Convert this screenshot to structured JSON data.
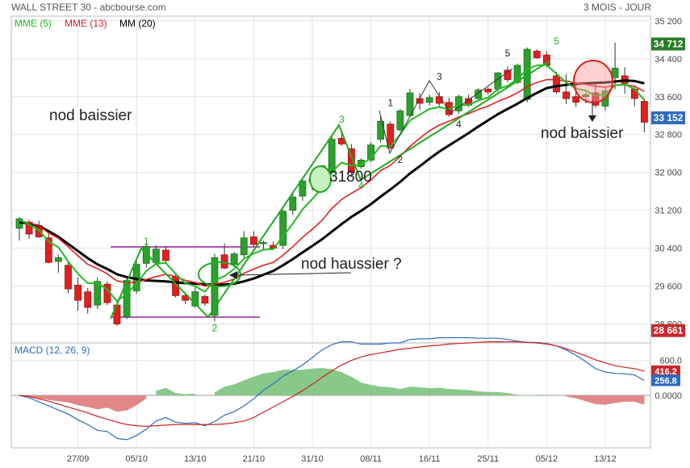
{
  "header": {
    "title": "WALL STREET 30 - abcbourse.com",
    "period": "3 MOIS - JOUR"
  },
  "chart_data": [
    {
      "type": "candlestick",
      "legend": [
        {
          "name": "MME (5)",
          "color": "#22bb22"
        },
        {
          "name": "MME (13)",
          "color": "#e02020"
        },
        {
          "name": "MM (20)",
          "color": "#000000"
        }
      ],
      "ylim": [
        28400,
        35300
      ],
      "y_ticks": [
        "35 200",
        "34 400",
        "33 600",
        "32 800",
        "32 000",
        "31 200",
        "30 400",
        "29 600",
        "28 800"
      ],
      "price_tags": [
        {
          "label": "34 712",
          "value": 34712,
          "bg": "#2a7d2a"
        },
        {
          "label": "33 152",
          "value": 33152,
          "bg": "#2e6bbf"
        },
        {
          "label": "28 661",
          "value": 28661,
          "bg": "#c8282c"
        }
      ],
      "x_ticks": [
        {
          "label": "27/09",
          "i": 6
        },
        {
          "label": "05/10",
          "i": 12
        },
        {
          "label": "13/10",
          "i": 18
        },
        {
          "label": "21/10",
          "i": 24
        },
        {
          "label": "31/10",
          "i": 30
        },
        {
          "label": "08/11",
          "i": 36
        },
        {
          "label": "16/11",
          "i": 42
        },
        {
          "label": "25/11",
          "i": 48
        },
        {
          "label": "05/12",
          "i": 54
        },
        {
          "label": "13/12",
          "i": 60
        }
      ],
      "candles": [
        {
          "o": 30820,
          "h": 31060,
          "l": 30560,
          "c": 31020
        },
        {
          "o": 30950,
          "h": 31000,
          "l": 30600,
          "c": 30700
        },
        {
          "o": 30880,
          "h": 30980,
          "l": 30620,
          "c": 30640
        },
        {
          "o": 30620,
          "h": 30700,
          "l": 30080,
          "c": 30100
        },
        {
          "o": 30120,
          "h": 30260,
          "l": 29880,
          "c": 30200
        },
        {
          "o": 30040,
          "h": 30100,
          "l": 29450,
          "c": 29540
        },
        {
          "o": 29620,
          "h": 29780,
          "l": 29080,
          "c": 29300
        },
        {
          "o": 29480,
          "h": 29560,
          "l": 29020,
          "c": 29150
        },
        {
          "o": 29200,
          "h": 29780,
          "l": 29120,
          "c": 29700
        },
        {
          "o": 29640,
          "h": 29700,
          "l": 29200,
          "c": 29250
        },
        {
          "o": 29200,
          "h": 29260,
          "l": 28760,
          "c": 28800
        },
        {
          "o": 28950,
          "h": 29800,
          "l": 28900,
          "c": 29720
        },
        {
          "o": 29500,
          "h": 30140,
          "l": 29440,
          "c": 30060
        },
        {
          "o": 30080,
          "h": 30480,
          "l": 30000,
          "c": 30440
        },
        {
          "o": 30100,
          "h": 30460,
          "l": 30060,
          "c": 30380
        },
        {
          "o": 30360,
          "h": 30420,
          "l": 30060,
          "c": 30140
        },
        {
          "o": 29800,
          "h": 29860,
          "l": 29360,
          "c": 29400
        },
        {
          "o": 29400,
          "h": 29460,
          "l": 29220,
          "c": 29300
        },
        {
          "o": 29180,
          "h": 29580,
          "l": 29140,
          "c": 29480
        },
        {
          "o": 29380,
          "h": 29420,
          "l": 29180,
          "c": 29240
        },
        {
          "o": 28980,
          "h": 30280,
          "l": 28860,
          "c": 30200
        },
        {
          "o": 30260,
          "h": 30500,
          "l": 29960,
          "c": 29980
        },
        {
          "o": 30060,
          "h": 30320,
          "l": 30000,
          "c": 30280
        },
        {
          "o": 30260,
          "h": 30760,
          "l": 30200,
          "c": 30620
        },
        {
          "o": 30640,
          "h": 30760,
          "l": 30440,
          "c": 30480
        },
        {
          "o": 30500,
          "h": 30560,
          "l": 30380,
          "c": 30520
        },
        {
          "o": 30460,
          "h": 30540,
          "l": 30360,
          "c": 30400
        },
        {
          "o": 30460,
          "h": 31220,
          "l": 30380,
          "c": 31180
        },
        {
          "o": 31200,
          "h": 31560,
          "l": 31100,
          "c": 31480
        },
        {
          "o": 31500,
          "h": 31860,
          "l": 31400,
          "c": 31820
        },
        {
          "o": 31800,
          "h": 31920,
          "l": 31620,
          "c": 31860
        },
        {
          "o": 31940,
          "h": 32160,
          "l": 31880,
          "c": 32140
        },
        {
          "o": 32000,
          "h": 32800,
          "l": 31960,
          "c": 32700
        },
        {
          "o": 32720,
          "h": 32860,
          "l": 32560,
          "c": 32600
        },
        {
          "o": 32500,
          "h": 32600,
          "l": 31900,
          "c": 32000
        },
        {
          "o": 32120,
          "h": 32300,
          "l": 32080,
          "c": 32260
        },
        {
          "o": 32260,
          "h": 32640,
          "l": 32220,
          "c": 32580
        },
        {
          "o": 32700,
          "h": 33180,
          "l": 32620,
          "c": 33080
        },
        {
          "o": 33020,
          "h": 33080,
          "l": 32480,
          "c": 32520
        },
        {
          "o": 32900,
          "h": 33340,
          "l": 32860,
          "c": 33300
        },
        {
          "o": 33200,
          "h": 33760,
          "l": 33160,
          "c": 33680
        },
        {
          "o": 33560,
          "h": 33680,
          "l": 33320,
          "c": 33460
        },
        {
          "o": 33480,
          "h": 33640,
          "l": 33420,
          "c": 33580
        },
        {
          "o": 33600,
          "h": 33700,
          "l": 33400,
          "c": 33460
        },
        {
          "o": 33480,
          "h": 33580,
          "l": 33180,
          "c": 33220
        },
        {
          "o": 33300,
          "h": 33640,
          "l": 33240,
          "c": 33600
        },
        {
          "o": 33560,
          "h": 33640,
          "l": 33380,
          "c": 33420
        },
        {
          "o": 33560,
          "h": 33780,
          "l": 33520,
          "c": 33740
        },
        {
          "o": 33760,
          "h": 33800,
          "l": 33640,
          "c": 33700
        },
        {
          "o": 33760,
          "h": 34120,
          "l": 33700,
          "c": 34100
        },
        {
          "o": 34160,
          "h": 34240,
          "l": 33900,
          "c": 33960
        },
        {
          "o": 33900,
          "h": 34300,
          "l": 33860,
          "c": 34260
        },
        {
          "o": 33540,
          "h": 34640,
          "l": 33480,
          "c": 34600
        },
        {
          "o": 34560,
          "h": 34600,
          "l": 34400,
          "c": 34420
        },
        {
          "o": 34480,
          "h": 34560,
          "l": 34220,
          "c": 34260
        },
        {
          "o": 34040,
          "h": 34120,
          "l": 33660,
          "c": 33700
        },
        {
          "o": 33700,
          "h": 34080,
          "l": 33440,
          "c": 33560
        },
        {
          "o": 33600,
          "h": 33900,
          "l": 33380,
          "c": 33480
        },
        {
          "o": 33600,
          "h": 33680,
          "l": 33460,
          "c": 33640
        },
        {
          "o": 33680,
          "h": 33900,
          "l": 33360,
          "c": 33420
        },
        {
          "o": 33400,
          "h": 33800,
          "l": 33300,
          "c": 33720
        },
        {
          "o": 34000,
          "h": 34740,
          "l": 33760,
          "c": 34200
        },
        {
          "o": 34040,
          "h": 34220,
          "l": 33660,
          "c": 33880
        },
        {
          "o": 33760,
          "h": 33840,
          "l": 33400,
          "c": 33560
        },
        {
          "o": 33500,
          "h": 33560,
          "l": 32840,
          "c": 33060
        }
      ],
      "mme5": [
        31000,
        30900,
        30780,
        30540,
        30420,
        30120,
        29860,
        29660,
        29670,
        29530,
        29280,
        29440,
        29650,
        29920,
        30070,
        30090,
        29860,
        29660,
        29600,
        29480,
        29720,
        29810,
        29960,
        30180,
        30290,
        30370,
        30380,
        30650,
        30920,
        31220,
        31440,
        31670,
        32010,
        32210,
        32140,
        32170,
        32300,
        32560,
        32550,
        32800,
        33100,
        33220,
        33340,
        33380,
        33330,
        33420,
        33420,
        33520,
        33580,
        33760,
        33830,
        33970,
        34180,
        34260,
        34270,
        34080,
        33900,
        33770,
        33730,
        33620,
        33650,
        33840,
        33860,
        33760,
        33530
      ],
      "mme13": [
        30980,
        30940,
        30870,
        30720,
        30610,
        30430,
        30240,
        30060,
        29970,
        29860,
        29710,
        29670,
        29680,
        29740,
        29800,
        29850,
        29800,
        29720,
        29680,
        29600,
        29640,
        29680,
        29750,
        29870,
        29960,
        30040,
        30100,
        30250,
        30430,
        30630,
        30800,
        30990,
        31240,
        31430,
        31560,
        31680,
        31840,
        32040,
        32150,
        32340,
        32550,
        32720,
        32880,
        33000,
        33080,
        33170,
        33240,
        33330,
        33400,
        33500,
        33580,
        33680,
        33810,
        33900,
        33960,
        33960,
        33930,
        33890,
        33860,
        33820,
        33800,
        33840,
        33850,
        33820,
        33710
      ],
      "mm20": [
        30950,
        30920,
        30870,
        30760,
        30640,
        30490,
        30340,
        30190,
        30060,
        29960,
        29850,
        29790,
        29750,
        29720,
        29710,
        29700,
        29680,
        29660,
        29650,
        29640,
        29630,
        29630,
        29650,
        29700,
        29760,
        29840,
        29920,
        30040,
        30170,
        30310,
        30450,
        30590,
        30750,
        30910,
        31060,
        31190,
        31330,
        31490,
        31640,
        31800,
        31980,
        32130,
        32290,
        32440,
        32570,
        32700,
        32830,
        32970,
        33100,
        33230,
        33340,
        33450,
        33570,
        33680,
        33780,
        33820,
        33850,
        33870,
        33880,
        33890,
        33900,
        33920,
        33940,
        33930,
        33880
      ],
      "annotations": [
        {
          "text": "nod baissier"
        },
        {
          "text": "nod haussier ?"
        },
        {
          "text": "31800"
        },
        {
          "text": "nod baissier"
        }
      ],
      "wave_labels": [
        {
          "text": "1",
          "color": "#22aa22",
          "i": 13,
          "v": 30480
        },
        {
          "text": "2",
          "color": "#22aa22",
          "i": 20,
          "v": 28650
        },
        {
          "text": "3",
          "color": "#22aa22",
          "i": 33,
          "v": 33050
        },
        {
          "text": "4",
          "color": "#22aa22",
          "i": 35,
          "v": 31650
        },
        {
          "text": "5",
          "color": "#22aa22",
          "i": 55,
          "v": 34700
        },
        {
          "text": "1",
          "color": "#222222",
          "i": 38,
          "v": 33400
        },
        {
          "text": "2",
          "color": "#222222",
          "i": 39,
          "v": 32200
        },
        {
          "text": "3",
          "color": "#222222",
          "i": 43,
          "v": 33950
        },
        {
          "text": "4",
          "color": "#222222",
          "i": 45,
          "v": 32950
        },
        {
          "text": "5",
          "color": "#222222",
          "i": 50,
          "v": 34450
        }
      ]
    },
    {
      "type": "macd",
      "title": "MACD (12, 26, 9)",
      "ylim": [
        -900,
        900
      ],
      "y_ticks": [
        "600.0",
        "0.0000"
      ],
      "value_tags": [
        {
          "label": "416.2",
          "value": 416.2,
          "bg": "#c8282c"
        },
        {
          "label": "256.8",
          "value": 256.8,
          "bg": "#2e6bbf"
        }
      ],
      "macd": [
        0,
        -40,
        -110,
        -180,
        -250,
        -320,
        -420,
        -500,
        -600,
        -620,
        -740,
        -760,
        -690,
        -580,
        -440,
        -380,
        -460,
        -480,
        -470,
        -520,
        -450,
        -340,
        -280,
        -180,
        -60,
        90,
        200,
        330,
        420,
        520,
        650,
        780,
        870,
        920,
        920,
        880,
        880,
        880,
        900,
        900,
        960,
        970,
        970,
        990,
        990,
        990,
        990,
        980,
        980,
        980,
        960,
        930,
        910,
        910,
        890,
        850,
        780,
        690,
        580,
        460,
        400,
        380,
        370,
        350,
        256.8
      ],
      "signal": [
        0,
        -20,
        -60,
        -100,
        -150,
        -200,
        -250,
        -300,
        -360,
        -410,
        -460,
        -500,
        -520,
        -530,
        -520,
        -510,
        -500,
        -500,
        -500,
        -500,
        -500,
        -490,
        -470,
        -440,
        -380,
        -290,
        -200,
        -110,
        -20,
        80,
        190,
        310,
        420,
        520,
        600,
        660,
        700,
        730,
        760,
        790,
        810,
        830,
        850,
        860,
        880,
        890,
        900,
        910,
        920,
        920,
        920,
        920,
        910,
        900,
        880,
        850,
        800,
        740,
        680,
        610,
        560,
        510,
        480,
        460,
        416.2
      ]
    }
  ]
}
